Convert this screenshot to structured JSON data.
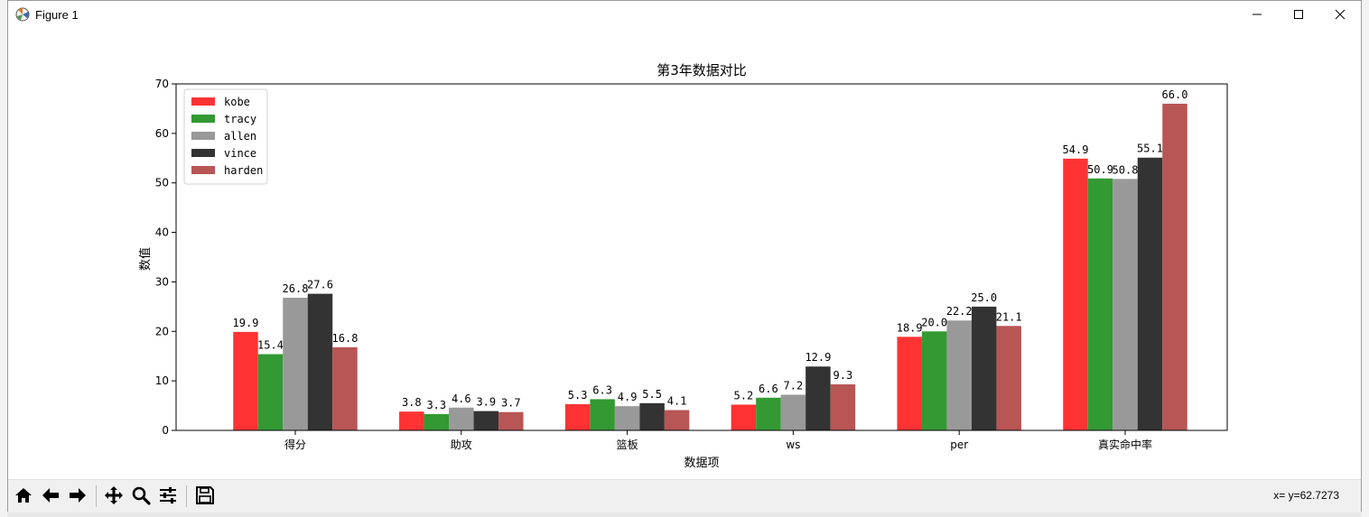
{
  "window": {
    "title": "Figure 1",
    "icon": "matplotlib-icon"
  },
  "window_controls": {
    "minimize_icon": "minimize-icon",
    "maximize_icon": "maximize-icon",
    "close_icon": "close-icon"
  },
  "toolbar": {
    "buttons": [
      {
        "name": "home-button",
        "icon": "home-icon"
      },
      {
        "name": "back-button",
        "icon": "arrow-left-icon"
      },
      {
        "name": "forward-button",
        "icon": "arrow-right-icon"
      },
      {
        "name": "pan-button",
        "icon": "move-icon"
      },
      {
        "name": "zoom-button",
        "icon": "magnifier-icon"
      },
      {
        "name": "configure-subplots-button",
        "icon": "sliders-icon"
      },
      {
        "name": "save-button",
        "icon": "floppy-icon"
      }
    ],
    "coordinates": "x= y=62.7273"
  },
  "chart_data": {
    "type": "bar",
    "title": "第3年数据对比",
    "xlabel": "数据项",
    "ylabel": "数值",
    "ylim": [
      0,
      70
    ],
    "yticks": [
      0,
      10,
      20,
      30,
      40,
      50,
      60,
      70
    ],
    "categories": [
      "得分",
      "助攻",
      "篮板",
      "ws",
      "per",
      "真实命中率"
    ],
    "legend_position": "upper-left",
    "grid": false,
    "series": [
      {
        "name": "kobe",
        "color": "#ff3333",
        "values": [
          19.9,
          3.8,
          5.3,
          5.2,
          18.9,
          54.9
        ]
      },
      {
        "name": "tracy",
        "color": "#339933",
        "values": [
          15.4,
          3.3,
          6.3,
          6.6,
          20.0,
          50.9
        ]
      },
      {
        "name": "allen",
        "color": "#999999",
        "values": [
          26.8,
          4.6,
          4.9,
          7.2,
          22.2,
          50.8
        ]
      },
      {
        "name": "vince",
        "color": "#333333",
        "values": [
          27.6,
          3.9,
          5.5,
          12.9,
          25.0,
          55.1
        ]
      },
      {
        "name": "harden",
        "color": "#b85555",
        "values": [
          16.8,
          3.7,
          4.1,
          9.3,
          21.1,
          66.0
        ]
      }
    ]
  }
}
